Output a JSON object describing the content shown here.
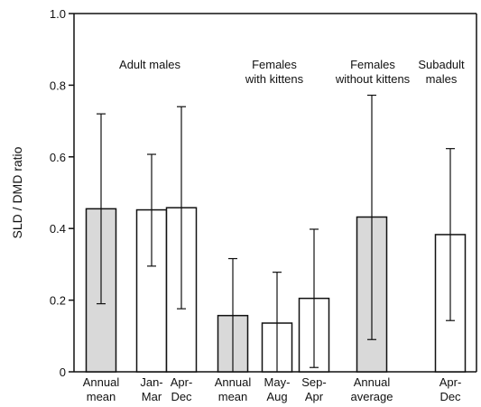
{
  "chart_data": {
    "type": "bar",
    "title": "",
    "xlabel": "",
    "ylabel": "SLD / DMD ratio",
    "ylim": [
      0,
      1.0
    ],
    "yticks": [
      "0",
      "0.2",
      "0.4",
      "0.6",
      "0.8",
      "1.0"
    ],
    "grid": false,
    "groups": [
      {
        "label": [
          "Adult males"
        ]
      },
      {
        "label": [
          "Females",
          "with kittens"
        ]
      },
      {
        "label": [
          "Females",
          "without kittens"
        ]
      },
      {
        "label": [
          "Subadult",
          "males"
        ]
      }
    ],
    "bars": [
      {
        "label": [
          "Annual",
          "mean"
        ],
        "value": 0.455,
        "err_low": 0.19,
        "err_high": 0.72,
        "fill": "#d9d9d9"
      },
      {
        "label": [
          "Jan-",
          "Mar"
        ],
        "value": 0.452,
        "err_low": 0.295,
        "err_high": 0.607,
        "fill": "#ffffff"
      },
      {
        "label": [
          "Apr-",
          "Dec"
        ],
        "value": 0.458,
        "err_low": 0.176,
        "err_high": 0.74,
        "fill": "#ffffff"
      },
      {
        "label": [
          "Annual",
          "mean"
        ],
        "value": 0.157,
        "err_low": 0.0,
        "err_high": 0.316,
        "fill": "#d9d9d9"
      },
      {
        "label": [
          "May-",
          "Aug"
        ],
        "value": 0.136,
        "err_low": 0.0,
        "err_high": 0.278,
        "fill": "#ffffff"
      },
      {
        "label": [
          "Sep-",
          "Apr"
        ],
        "value": 0.205,
        "err_low": 0.012,
        "err_high": 0.398,
        "fill": "#ffffff"
      },
      {
        "label": [
          "Annual",
          "average"
        ],
        "value": 0.432,
        "err_low": 0.09,
        "err_high": 0.772,
        "fill": "#d9d9d9"
      },
      {
        "label": [
          "Apr-",
          "Dec"
        ],
        "value": 0.383,
        "err_low": 0.143,
        "err_high": 0.623,
        "fill": "#ffffff"
      }
    ]
  }
}
